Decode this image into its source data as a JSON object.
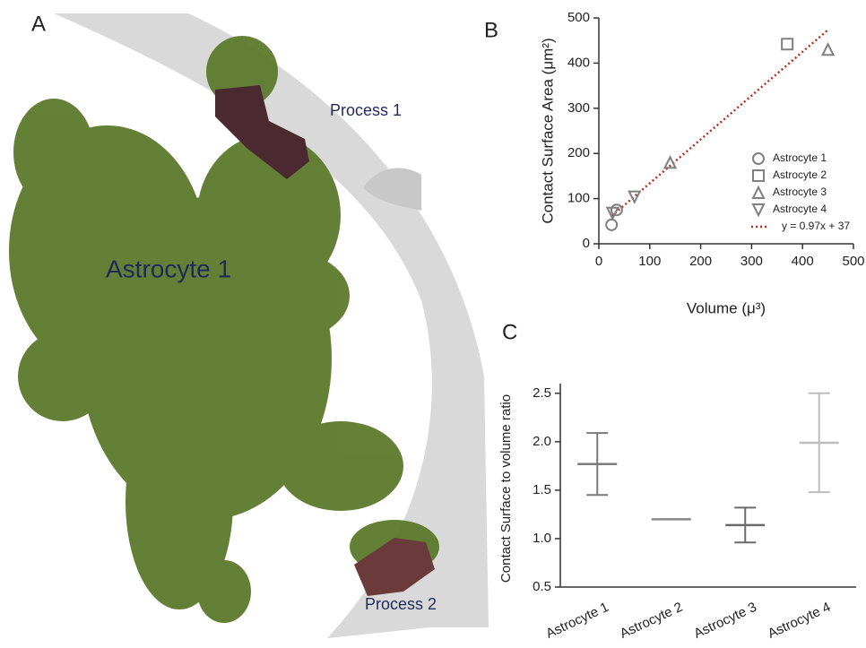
{
  "panel_a": {
    "label": "A",
    "annotations": [
      "Process 1",
      "Astrocyte 1",
      "Process 2"
    ]
  },
  "chart_data": [
    {
      "type": "scatter",
      "panel": "B",
      "xlabel": "Volume (μ³)",
      "ylabel": "Contact Surface Area (μm²)",
      "xlim": [
        0,
        500
      ],
      "xticks": [
        0,
        100,
        200,
        300,
        400,
        500
      ],
      "ylim": [
        0,
        500
      ],
      "yticks": [
        0,
        100,
        200,
        300,
        400,
        500
      ],
      "series": [
        {
          "name": "Astrocyte 1",
          "color": "#7f7f7f",
          "marker": "circle",
          "x": [
            25,
            35
          ],
          "values": [
            42,
            75
          ]
        },
        {
          "name": "Astrocyte 2",
          "color": "#7f7f7f",
          "marker": "square",
          "x": [
            370
          ],
          "values": [
            442
          ]
        },
        {
          "name": "Astrocyte 3",
          "color": "#7f7f7f",
          "marker": "triangle-up",
          "x": [
            140,
            450
          ],
          "values": [
            180,
            430
          ]
        },
        {
          "name": "Astrocyte 4",
          "color": "#7f7f7f",
          "marker": "triangle-down",
          "x": [
            27,
            70
          ],
          "values": [
            68,
            104
          ]
        }
      ],
      "fit": {
        "name": "y = 0.97x + 37",
        "color": "#b5301f",
        "slope": 0.97,
        "intercept": 37,
        "x": [
          25,
          450
        ]
      }
    },
    {
      "type": "errorbar",
      "panel": "C",
      "ylabel": "Contact Surface to volume ratio",
      "categories": [
        "Astrocyte 1",
        "Astrocyte 2",
        "Astrocyte 3",
        "Astrocyte 4"
      ],
      "values": [
        1.77,
        1.2,
        1.14,
        1.99
      ],
      "low": [
        1.45,
        1.2,
        0.96,
        1.48
      ],
      "high": [
        2.09,
        1.2,
        1.32,
        2.5
      ],
      "colors": [
        "#7a7a7a",
        "#8a8a8a",
        "#6a6a6a",
        "#bdbdbd"
      ],
      "ylim": [
        0.5,
        2.6
      ],
      "yticks": [
        {
          "value": 0.5,
          "label": "0.5"
        },
        {
          "value": 1,
          "label": "1.0"
        },
        {
          "value": 1.5,
          "label": "1.5"
        },
        {
          "value": 2,
          "label": "2.0"
        },
        {
          "value": 2.5,
          "label": "2.5"
        }
      ]
    }
  ]
}
